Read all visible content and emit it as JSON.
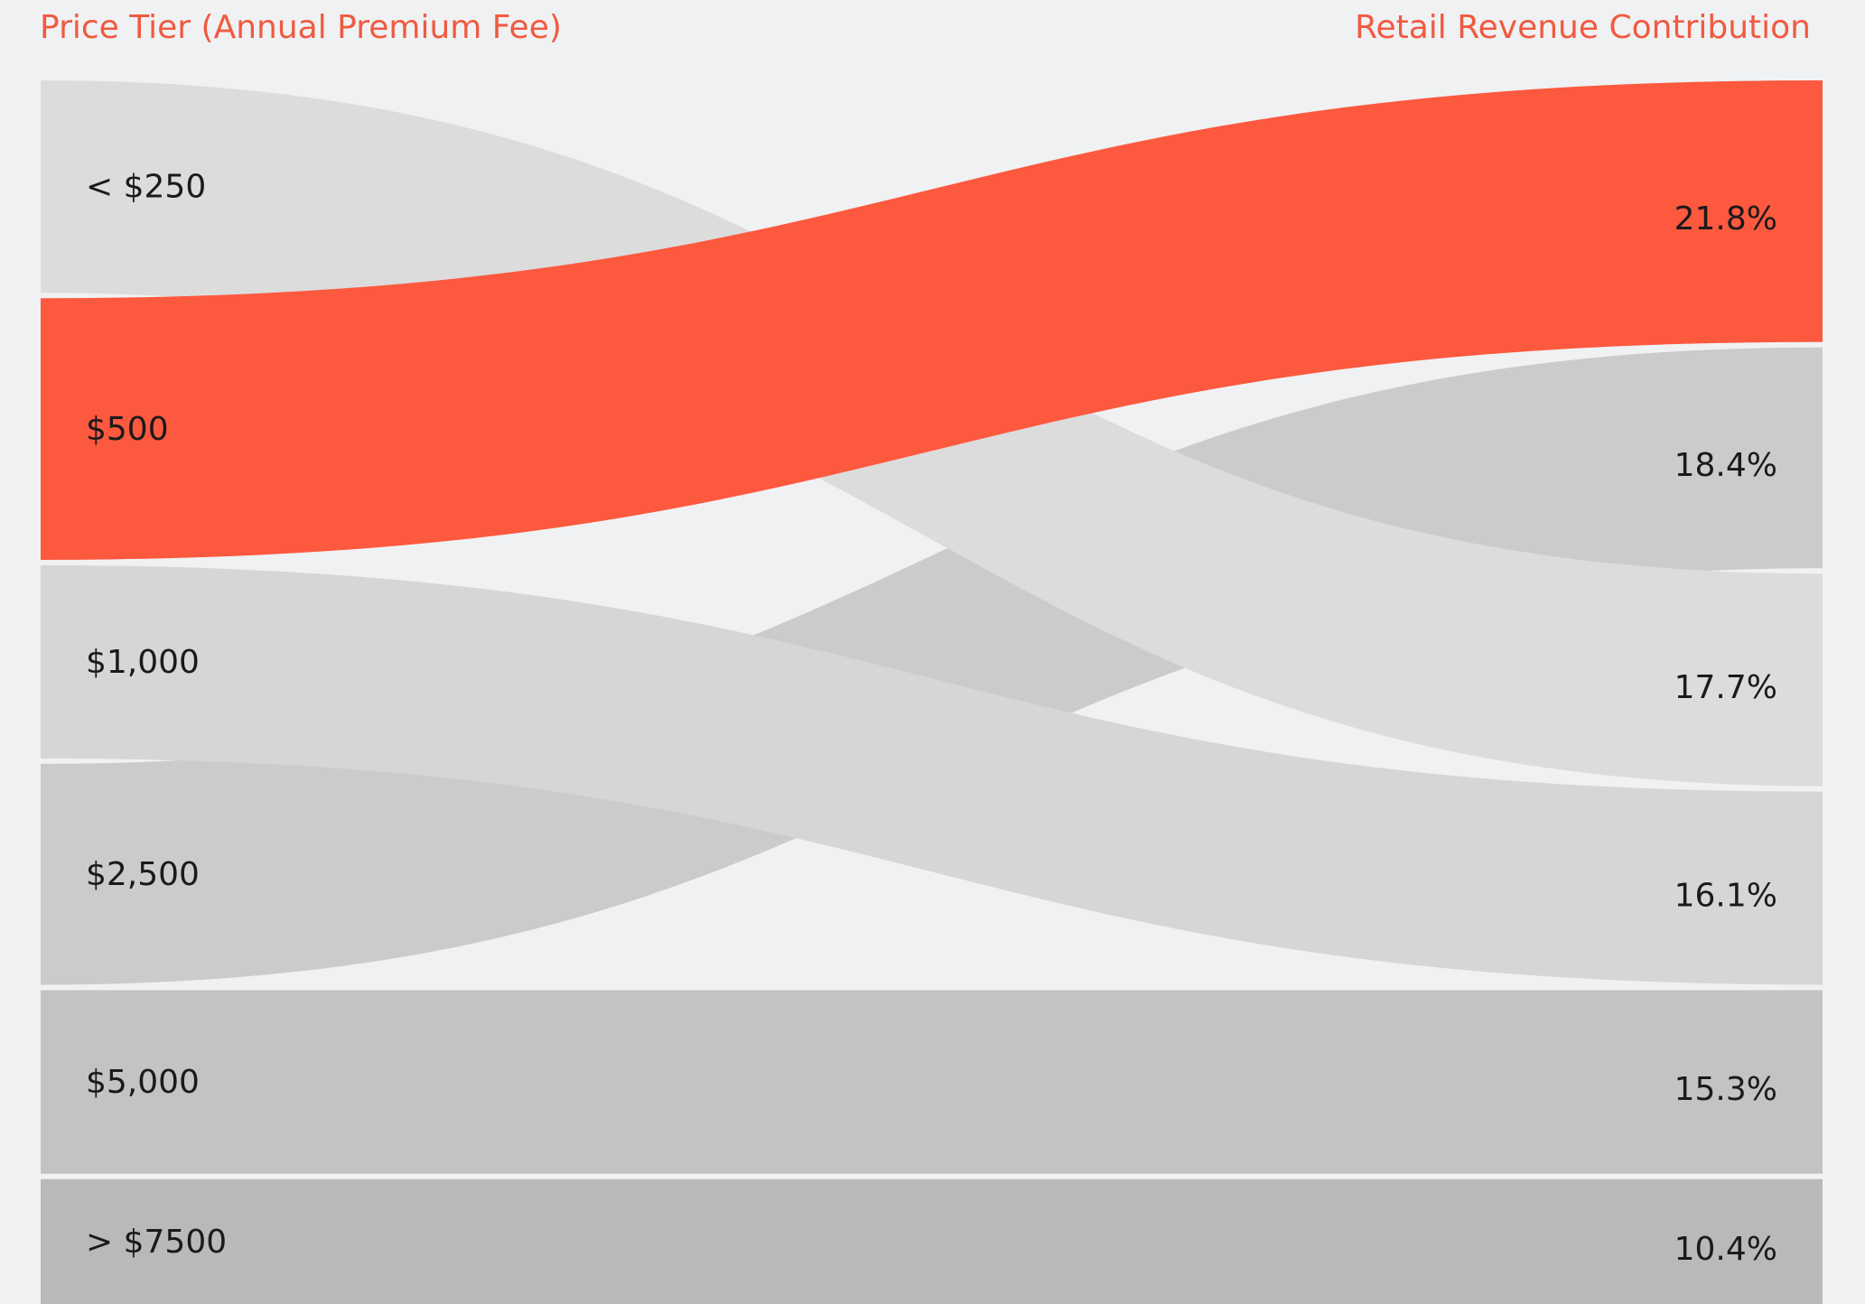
{
  "headers": {
    "left": "Price Tier (Annual Premium Fee)",
    "right": "Retail Revenue Contribution"
  },
  "colors": {
    "background": "#f0f1f3",
    "highlight": "#fc593f",
    "header_text": "#f05a40",
    "label_text": "#1a1a1a",
    "band_250": "#dcdcdc",
    "band_500": "#fc593f",
    "band_1000": "#d6d6d6",
    "band_2500": "#cbcbcb",
    "band_5000": "#c3c3c3",
    "band_7500": "#b9b9b9"
  },
  "chart_data": {
    "type": "sankey",
    "sources": [
      "< $250",
      "$500",
      "$1,000",
      "$2,500",
      "$5,000",
      "> $7500"
    ],
    "targets": [
      "21.8%",
      "18.4%",
      "17.7%",
      "16.1%",
      "15.3%",
      "10.4%"
    ],
    "flows": [
      {
        "source": "< $250",
        "target": "17.7%",
        "value": 17.7
      },
      {
        "source": "$500",
        "target": "21.8%",
        "value": 21.8
      },
      {
        "source": "$1,000",
        "target": "16.1%",
        "value": 16.1
      },
      {
        "source": "$2,500",
        "target": "18.4%",
        "value": 18.4
      },
      {
        "source": "$5,000",
        "target": "15.3%",
        "value": 15.3
      },
      {
        "source": "> $7500",
        "target": "10.4%",
        "value": 10.4
      }
    ],
    "highlighted_source": "$500"
  }
}
